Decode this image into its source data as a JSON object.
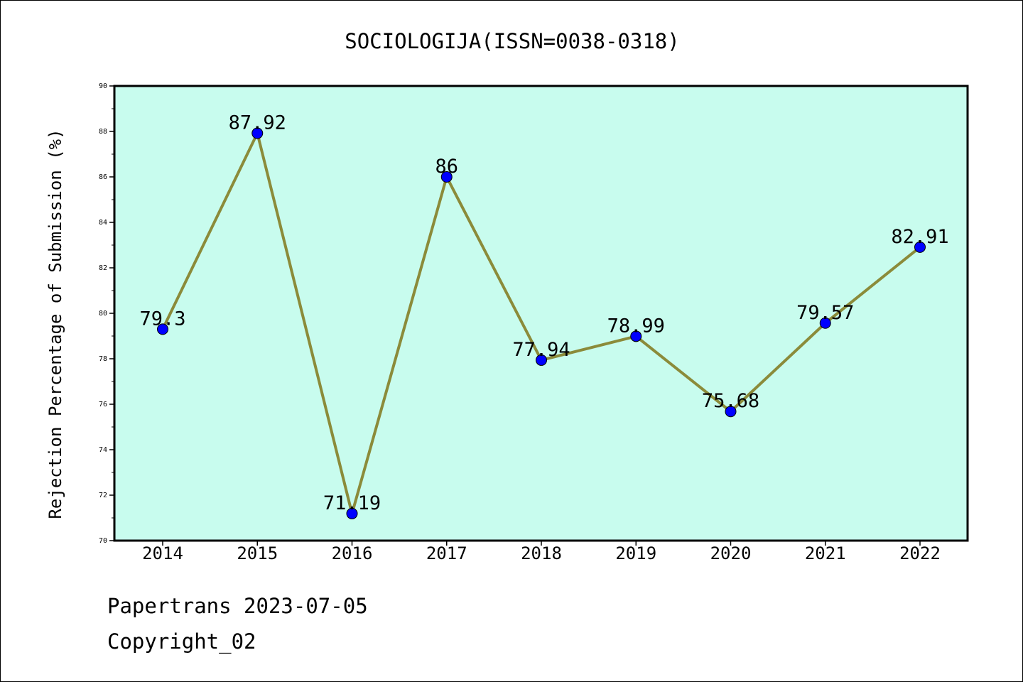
{
  "chart_data": {
    "type": "line",
    "title": "SOCIOLOGIJA(ISSN=0038-0318)",
    "xlabel": "",
    "ylabel": "Rejection Percentage of Submission (%)",
    "categories": [
      "2014",
      "2015",
      "2016",
      "2017",
      "2018",
      "2019",
      "2020",
      "2021",
      "2022"
    ],
    "series": [
      {
        "values": [
          79.3,
          87.92,
          71.19,
          86,
          77.94,
          78.99,
          75.68,
          79.57,
          82.91
        ],
        "labels": [
          "79.3",
          "87.92",
          "71.19",
          "86",
          "77.94",
          "78.99",
          "75.68",
          "79.57",
          "82.91"
        ]
      }
    ],
    "ylim": [
      70,
      90
    ],
    "yticks": [
      "70",
      "72",
      "74",
      "76",
      "78",
      "80",
      "82",
      "84",
      "86",
      "88",
      "90"
    ],
    "grid": false,
    "colors": {
      "plot_background": "#c8fcee",
      "line": "#8b8b3a",
      "marker": "#0000ff"
    }
  },
  "footer": {
    "source": "Papertrans 2023-07-05",
    "copyright": "Copyright_02"
  }
}
